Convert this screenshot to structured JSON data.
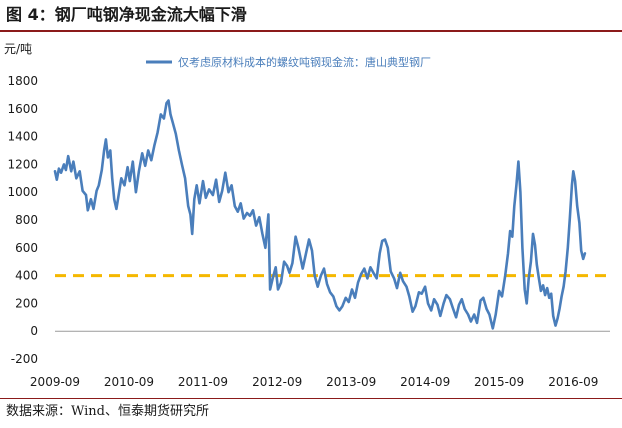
{
  "figure": {
    "title": "图 4：钢厂吨钢净现金流大幅下滑",
    "source": "数据来源：Wind、恒泰期货研究所"
  },
  "chart_data": {
    "type": "line",
    "ylabel": "元/吨",
    "ylim": [
      -200,
      1800
    ],
    "yticks": [
      -200,
      0,
      200,
      400,
      600,
      800,
      1000,
      1200,
      1400,
      1600,
      1800
    ],
    "xlim": [
      "2009-09",
      "2017-03"
    ],
    "xticks": [
      "2009-09",
      "2010-09",
      "2011-09",
      "2012-09",
      "2013-09",
      "2014-09",
      "2015-09",
      "2016-09"
    ],
    "grid": false,
    "legend_position": "top-center",
    "reference_line": {
      "y": 400,
      "style": "dashed",
      "color": "#f5b800"
    },
    "colors": {
      "series": "#4a7ebb",
      "reference": "#f5b800",
      "rule": "#8b1a1a"
    },
    "series": [
      {
        "name": "仅考虑原材料成本的螺纹吨钢现金流：唐山典型钢厂",
        "points": [
          [
            "2009-09-01",
            1150
          ],
          [
            "2009-09-10",
            1090
          ],
          [
            "2009-09-20",
            1170
          ],
          [
            "2009-10-01",
            1140
          ],
          [
            "2009-10-15",
            1200
          ],
          [
            "2009-10-25",
            1160
          ],
          [
            "2009-11-05",
            1260
          ],
          [
            "2009-11-20",
            1150
          ],
          [
            "2009-12-01",
            1220
          ],
          [
            "2009-12-15",
            1100
          ],
          [
            "2010-01-01",
            1150
          ],
          [
            "2010-01-15",
            1010
          ],
          [
            "2010-02-01",
            980
          ],
          [
            "2010-02-10",
            870
          ],
          [
            "2010-02-25",
            950
          ],
          [
            "2010-03-10",
            880
          ],
          [
            "2010-03-25",
            1010
          ],
          [
            "2010-04-05",
            1050
          ],
          [
            "2010-04-20",
            1160
          ],
          [
            "2010-05-01",
            1300
          ],
          [
            "2010-05-10",
            1380
          ],
          [
            "2010-05-20",
            1250
          ],
          [
            "2010-06-01",
            1300
          ],
          [
            "2010-06-10",
            1100
          ],
          [
            "2010-06-20",
            950
          ],
          [
            "2010-07-01",
            880
          ],
          [
            "2010-07-10",
            960
          ],
          [
            "2010-07-25",
            1100
          ],
          [
            "2010-08-10",
            1050
          ],
          [
            "2010-08-25",
            1180
          ],
          [
            "2010-09-05",
            1080
          ],
          [
            "2010-09-20",
            1220
          ],
          [
            "2010-10-05",
            1000
          ],
          [
            "2010-10-20",
            1150
          ],
          [
            "2010-11-05",
            1280
          ],
          [
            "2010-11-20",
            1190
          ],
          [
            "2010-12-05",
            1300
          ],
          [
            "2010-12-20",
            1230
          ],
          [
            "2011-01-05",
            1340
          ],
          [
            "2011-01-20",
            1430
          ],
          [
            "2011-02-05",
            1560
          ],
          [
            "2011-02-20",
            1530
          ],
          [
            "2011-03-05",
            1640
          ],
          [
            "2011-03-15",
            1660
          ],
          [
            "2011-03-25",
            1560
          ],
          [
            "2011-04-05",
            1500
          ],
          [
            "2011-04-20",
            1420
          ],
          [
            "2011-05-05",
            1300
          ],
          [
            "2011-05-20",
            1200
          ],
          [
            "2011-06-05",
            1100
          ],
          [
            "2011-06-20",
            900
          ],
          [
            "2011-07-01",
            840
          ],
          [
            "2011-07-10",
            700
          ],
          [
            "2011-07-20",
            950
          ],
          [
            "2011-08-01",
            1050
          ],
          [
            "2011-08-15",
            920
          ],
          [
            "2011-09-01",
            1080
          ],
          [
            "2011-09-15",
            960
          ],
          [
            "2011-10-01",
            1020
          ],
          [
            "2011-10-20",
            980
          ],
          [
            "2011-11-05",
            1090
          ],
          [
            "2011-11-20",
            930
          ],
          [
            "2011-12-05",
            1010
          ],
          [
            "2011-12-20",
            1140
          ],
          [
            "2012-01-05",
            1000
          ],
          [
            "2012-01-20",
            1050
          ],
          [
            "2012-02-05",
            900
          ],
          [
            "2012-02-20",
            860
          ],
          [
            "2012-03-05",
            920
          ],
          [
            "2012-03-20",
            810
          ],
          [
            "2012-04-05",
            850
          ],
          [
            "2012-04-20",
            830
          ],
          [
            "2012-05-05",
            870
          ],
          [
            "2012-05-20",
            760
          ],
          [
            "2012-06-05",
            820
          ],
          [
            "2012-06-20",
            700
          ],
          [
            "2012-07-05",
            600
          ],
          [
            "2012-07-20",
            840
          ],
          [
            "2012-07-28",
            300
          ],
          [
            "2012-08-10",
            380
          ],
          [
            "2012-08-25",
            460
          ],
          [
            "2012-09-05",
            300
          ],
          [
            "2012-09-20",
            350
          ],
          [
            "2012-10-05",
            500
          ],
          [
            "2012-10-20",
            470
          ],
          [
            "2012-11-01",
            420
          ],
          [
            "2012-11-15",
            490
          ],
          [
            "2012-12-01",
            680
          ],
          [
            "2012-12-15",
            600
          ],
          [
            "2013-01-05",
            450
          ],
          [
            "2013-01-20",
            550
          ],
          [
            "2013-02-05",
            660
          ],
          [
            "2013-02-20",
            580
          ],
          [
            "2013-03-05",
            400
          ],
          [
            "2013-03-20",
            320
          ],
          [
            "2013-04-05",
            400
          ],
          [
            "2013-04-20",
            450
          ],
          [
            "2013-05-05",
            340
          ],
          [
            "2013-05-20",
            280
          ],
          [
            "2013-06-05",
            250
          ],
          [
            "2013-06-20",
            180
          ],
          [
            "2013-07-05",
            150
          ],
          [
            "2013-07-20",
            180
          ],
          [
            "2013-08-05",
            240
          ],
          [
            "2013-08-20",
            210
          ],
          [
            "2013-09-05",
            300
          ],
          [
            "2013-09-20",
            240
          ],
          [
            "2013-10-05",
            350
          ],
          [
            "2013-10-20",
            410
          ],
          [
            "2013-11-05",
            450
          ],
          [
            "2013-11-20",
            380
          ],
          [
            "2013-12-05",
            460
          ],
          [
            "2013-12-20",
            420
          ],
          [
            "2014-01-05",
            380
          ],
          [
            "2014-01-20",
            560
          ],
          [
            "2014-02-01",
            650
          ],
          [
            "2014-02-15",
            660
          ],
          [
            "2014-03-01",
            600
          ],
          [
            "2014-03-15",
            430
          ],
          [
            "2014-04-01",
            380
          ],
          [
            "2014-04-15",
            310
          ],
          [
            "2014-05-01",
            420
          ],
          [
            "2014-05-15",
            360
          ],
          [
            "2014-06-01",
            320
          ],
          [
            "2014-06-15",
            250
          ],
          [
            "2014-07-01",
            140
          ],
          [
            "2014-07-15",
            180
          ],
          [
            "2014-08-01",
            280
          ],
          [
            "2014-08-15",
            270
          ],
          [
            "2014-09-01",
            320
          ],
          [
            "2014-09-15",
            200
          ],
          [
            "2014-10-01",
            150
          ],
          [
            "2014-10-15",
            230
          ],
          [
            "2014-11-01",
            190
          ],
          [
            "2014-11-15",
            110
          ],
          [
            "2014-12-01",
            200
          ],
          [
            "2014-12-15",
            260
          ],
          [
            "2015-01-01",
            230
          ],
          [
            "2015-01-15",
            170
          ],
          [
            "2015-02-01",
            100
          ],
          [
            "2015-02-15",
            190
          ],
          [
            "2015-03-01",
            230
          ],
          [
            "2015-03-15",
            160
          ],
          [
            "2015-04-01",
            120
          ],
          [
            "2015-04-15",
            70
          ],
          [
            "2015-05-01",
            120
          ],
          [
            "2015-05-15",
            60
          ],
          [
            "2015-06-01",
            220
          ],
          [
            "2015-06-15",
            240
          ],
          [
            "2015-07-01",
            160
          ],
          [
            "2015-07-15",
            120
          ],
          [
            "2015-08-01",
            20
          ],
          [
            "2015-08-15",
            120
          ],
          [
            "2015-09-01",
            290
          ],
          [
            "2015-09-15",
            250
          ],
          [
            "2015-10-01",
            400
          ],
          [
            "2015-10-15",
            560
          ],
          [
            "2015-10-25",
            720
          ],
          [
            "2015-11-05",
            680
          ],
          [
            "2015-11-15",
            900
          ],
          [
            "2015-11-25",
            1050
          ],
          [
            "2015-12-05",
            1220
          ],
          [
            "2015-12-15",
            1000
          ],
          [
            "2015-12-25",
            600
          ],
          [
            "2016-01-05",
            300
          ],
          [
            "2016-01-15",
            200
          ],
          [
            "2016-01-25",
            380
          ],
          [
            "2016-02-05",
            500
          ],
          [
            "2016-02-15",
            700
          ],
          [
            "2016-02-25",
            620
          ],
          [
            "2016-03-05",
            480
          ],
          [
            "2016-03-15",
            380
          ],
          [
            "2016-03-25",
            290
          ],
          [
            "2016-04-05",
            330
          ],
          [
            "2016-04-15",
            260
          ],
          [
            "2016-04-25",
            310
          ],
          [
            "2016-05-05",
            240
          ],
          [
            "2016-05-15",
            270
          ],
          [
            "2016-05-25",
            110
          ],
          [
            "2016-06-05",
            40
          ],
          [
            "2016-06-15",
            90
          ],
          [
            "2016-06-25",
            160
          ],
          [
            "2016-07-05",
            250
          ],
          [
            "2016-07-15",
            320
          ],
          [
            "2016-07-25",
            430
          ],
          [
            "2016-08-05",
            600
          ],
          [
            "2016-08-15",
            820
          ],
          [
            "2016-08-25",
            1050
          ],
          [
            "2016-09-01",
            1150
          ],
          [
            "2016-09-10",
            1080
          ],
          [
            "2016-09-20",
            900
          ],
          [
            "2016-10-01",
            780
          ],
          [
            "2016-10-10",
            580
          ],
          [
            "2016-10-20",
            520
          ],
          [
            "2016-10-28",
            560
          ]
        ]
      }
    ]
  }
}
